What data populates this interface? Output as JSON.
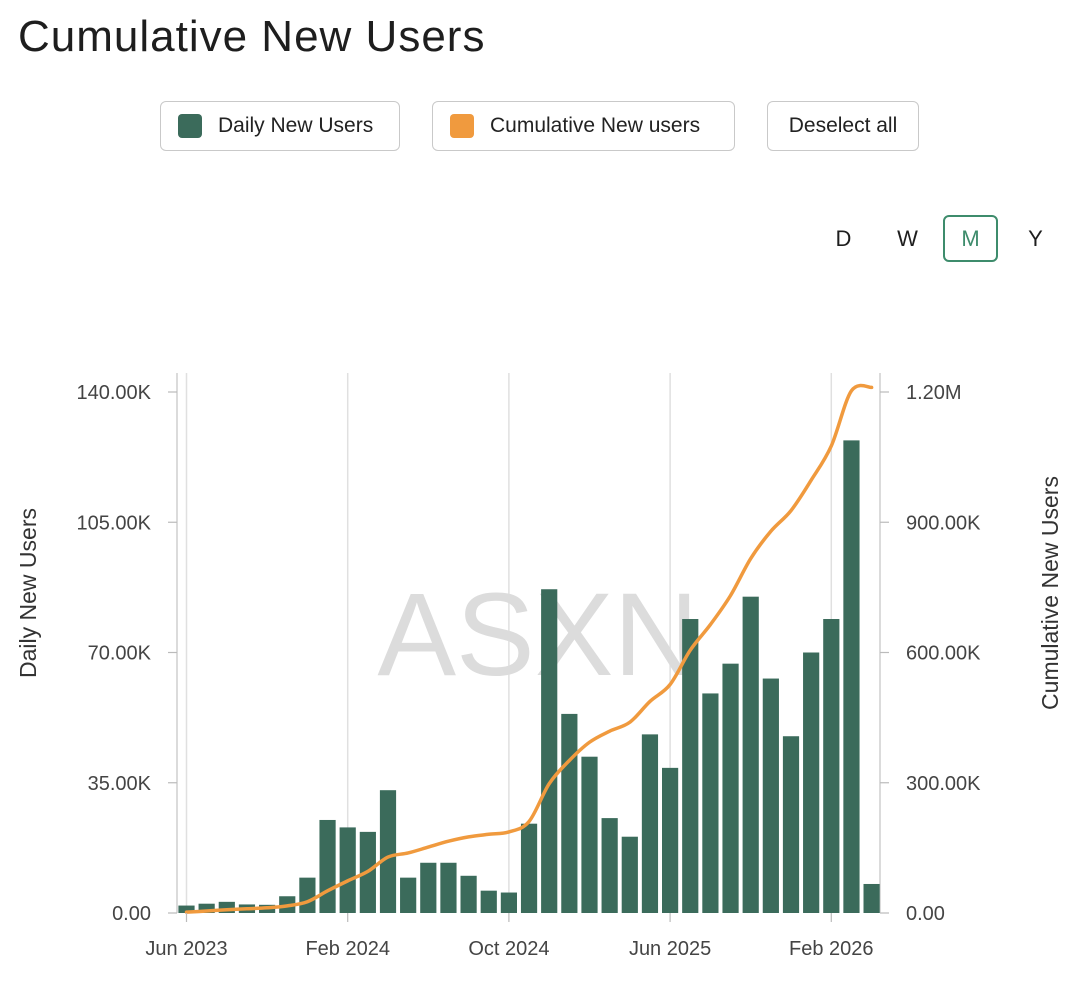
{
  "title": "Cumulative New Users",
  "legend": {
    "daily": {
      "label": "Daily New Users",
      "color": "#3b6b5b"
    },
    "cumulative": {
      "label": "Cumulative New users",
      "color": "#f09a3e"
    },
    "deselect": "Deselect all"
  },
  "periods": [
    "D",
    "W",
    "M",
    "Y"
  ],
  "active_period": "M",
  "watermark": "ASXN",
  "chart_data": {
    "type": "bar",
    "categories": [
      "Jun 2023",
      "Jul 2023",
      "Aug 2023",
      "Sep 2023",
      "Oct 2023",
      "Nov 2023",
      "Dec 2023",
      "Jan 2024",
      "Feb 2024",
      "Mar 2024",
      "Apr 2024",
      "May 2024",
      "Jun 2024",
      "Jul 2024",
      "Aug 2024",
      "Sep 2024",
      "Oct 2024",
      "Nov 2024",
      "Dec 2024",
      "Jan 2025",
      "Feb 2025",
      "Mar 2025",
      "Apr 2025",
      "May 2025",
      "Jun 2025",
      "Jul 2025",
      "Aug 2025",
      "Sep 2025",
      "Oct 2025",
      "Nov 2025",
      "Dec 2025",
      "Jan 2026",
      "Feb 2026",
      "Mar 2026",
      "Apr 2026"
    ],
    "series": [
      {
        "name": "Daily New Users",
        "type": "bar",
        "axis": "left",
        "values": [
          2000,
          2500,
          3000,
          2300,
          2200,
          4500,
          9500,
          25000,
          23000,
          21800,
          33000,
          9500,
          13500,
          13500,
          10000,
          6000,
          5500,
          24000,
          87000,
          53500,
          42000,
          25500,
          20500,
          48000,
          39000,
          79000,
          59000,
          67000,
          85000,
          63000,
          47500,
          70000,
          79000,
          127000,
          7800
        ]
      },
      {
        "name": "Cumulative New users",
        "type": "line",
        "axis": "right",
        "values": [
          2000,
          4500,
          7500,
          9800,
          12000,
          16500,
          26000,
          51000,
          74000,
          95800,
          128800,
          138300,
          151800,
          165300,
          175300,
          181300,
          186800,
          210800,
          297800,
          351300,
          393300,
          418800,
          439300,
          487300,
          526300,
          605300,
          664300,
          731300,
          816300,
          879300,
          926800,
          996800,
          1075800,
          1202800,
          1210600
        ]
      }
    ],
    "x_ticks": [
      "Jun 2023",
      "Feb 2024",
      "Oct 2024",
      "Jun 2025",
      "Feb 2026"
    ],
    "ylabel": "Daily New Users",
    "ylabel_right": "Cumulative New Users",
    "ylim": [
      0,
      140000
    ],
    "ylim_right": [
      0,
      1200000
    ],
    "y_ticks": [
      "0.00",
      "35.00K",
      "70.00K",
      "105.00K",
      "140.00K"
    ],
    "y_ticks_right": [
      "0.00",
      "300.00K",
      "600.00K",
      "900.00K",
      "1.20M"
    ],
    "grid": "vertical"
  }
}
